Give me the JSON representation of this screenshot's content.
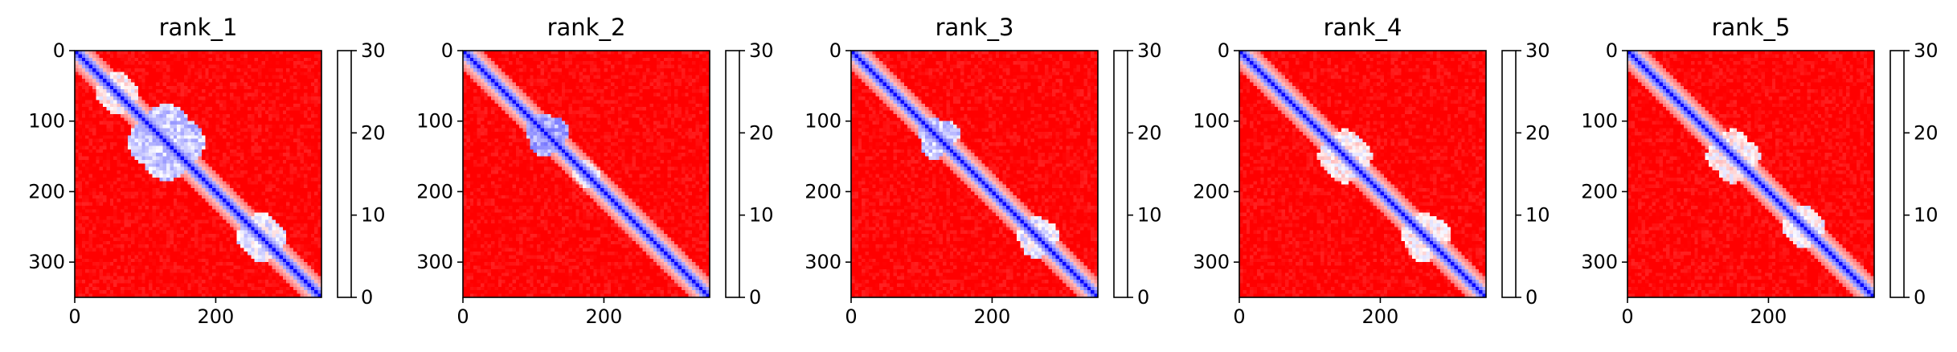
{
  "chart_data": [
    {
      "type": "heatmap",
      "title": "rank_1",
      "xlim": [
        0,
        350
      ],
      "ylim": [
        350,
        0
      ],
      "xticks": [
        0,
        200
      ],
      "yticks": [
        0,
        100,
        200,
        300
      ],
      "colorbar": {
        "min": 0,
        "max": 30,
        "ticks": [
          0,
          10,
          20,
          30
        ],
        "colors": [
          "#0000ff",
          "#ffffff",
          "#ff0000"
        ]
      },
      "low_regions": [
        {
          "cx": 130,
          "cy": 130,
          "rx": 55,
          "ry": 40,
          "v": 9
        },
        {
          "cx": 265,
          "cy": 265,
          "rx": 35,
          "ry": 25,
          "v": 11
        },
        {
          "cx": 60,
          "cy": 60,
          "rx": 30,
          "ry": 25,
          "v": 13
        }
      ]
    },
    {
      "type": "heatmap",
      "title": "rank_2",
      "xlim": [
        0,
        350
      ],
      "ylim": [
        350,
        0
      ],
      "xticks": [
        0,
        200
      ],
      "yticks": [
        0,
        100,
        200,
        300
      ],
      "colorbar": {
        "min": 0,
        "max": 30,
        "ticks": [
          0,
          10,
          20,
          30
        ],
        "colors": [
          "#0000ff",
          "#ffffff",
          "#ff0000"
        ]
      },
      "low_regions": [
        {
          "cx": 120,
          "cy": 115,
          "rx": 32,
          "ry": 22,
          "v": 7
        },
        {
          "cx": 175,
          "cy": 175,
          "rx": 18,
          "ry": 15,
          "v": 12
        }
      ]
    },
    {
      "type": "heatmap",
      "title": "rank_3",
      "xlim": [
        0,
        350
      ],
      "ylim": [
        350,
        0
      ],
      "xticks": [
        0,
        200
      ],
      "yticks": [
        0,
        100,
        200,
        300
      ],
      "colorbar": {
        "min": 0,
        "max": 30,
        "ticks": [
          0,
          10,
          20,
          30
        ],
        "colors": [
          "#0000ff",
          "#ffffff",
          "#ff0000"
        ]
      },
      "low_regions": [
        {
          "cx": 125,
          "cy": 118,
          "rx": 30,
          "ry": 20,
          "v": 9
        },
        {
          "cx": 265,
          "cy": 262,
          "rx": 30,
          "ry": 22,
          "v": 11
        }
      ]
    },
    {
      "type": "heatmap",
      "title": "rank_4",
      "xlim": [
        0,
        350
      ],
      "ylim": [
        350,
        0
      ],
      "xticks": [
        0,
        200
      ],
      "yticks": [
        0,
        100,
        200,
        300
      ],
      "colorbar": {
        "min": 0,
        "max": 30,
        "ticks": [
          0,
          10,
          20,
          30
        ],
        "colors": [
          "#0000ff",
          "#ffffff",
          "#ff0000"
        ]
      },
      "low_regions": [
        {
          "cx": 150,
          "cy": 150,
          "rx": 38,
          "ry": 28,
          "v": 13
        },
        {
          "cx": 265,
          "cy": 260,
          "rx": 35,
          "ry": 25,
          "v": 13
        }
      ]
    },
    {
      "type": "heatmap",
      "title": "rank_5",
      "xlim": [
        0,
        350
      ],
      "ylim": [
        350,
        0
      ],
      "xticks": [
        0,
        200
      ],
      "yticks": [
        0,
        100,
        200,
        300
      ],
      "colorbar": {
        "min": 0,
        "max": 30,
        "ticks": [
          0,
          10,
          20,
          30
        ],
        "colors": [
          "#0000ff",
          "#ffffff",
          "#ff0000"
        ]
      },
      "low_regions": [
        {
          "cx": 150,
          "cy": 150,
          "rx": 38,
          "ry": 26,
          "v": 13
        },
        {
          "cx": 250,
          "cy": 250,
          "rx": 30,
          "ry": 22,
          "v": 12
        }
      ]
    }
  ]
}
